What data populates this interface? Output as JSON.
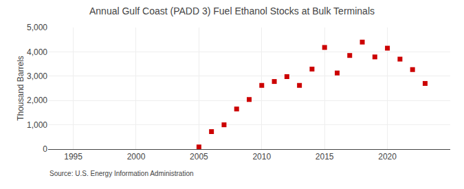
{
  "chart_data": {
    "type": "scatter",
    "title": "Annual Gulf Coast (PADD 3) Fuel Ethanol Stocks at Bulk Terminals",
    "ylabel": "Thousand Barrels",
    "annotations": [
      "Source: U.S. Energy Information Administration"
    ],
    "x": [
      2005,
      2006,
      2007,
      2008,
      2009,
      2010,
      2011,
      2012,
      2013,
      2014,
      2015,
      2016,
      2017,
      2018,
      2019,
      2020,
      2021,
      2022,
      2023
    ],
    "values": [
      90,
      720,
      1000,
      1650,
      2040,
      2620,
      2780,
      2980,
      2620,
      3290,
      4180,
      3130,
      3850,
      4400,
      3790,
      4150,
      3700,
      3270,
      2700
    ],
    "color": "#cc0000",
    "marker": "square",
    "xlim": [
      1993,
      2025
    ],
    "ylim": [
      0,
      5000
    ],
    "xticks": [
      1995,
      2000,
      2005,
      2010,
      2015,
      2020
    ],
    "yticks": [
      0,
      {
        "value": 1000,
        "label": "1,000"
      },
      {
        "value": 2000,
        "label": "2,000"
      },
      {
        "value": 3000,
        "label": "3,000"
      },
      {
        "value": 4000,
        "label": "4,000"
      },
      {
        "value": 5000,
        "label": "5,000"
      }
    ],
    "grid": true
  }
}
